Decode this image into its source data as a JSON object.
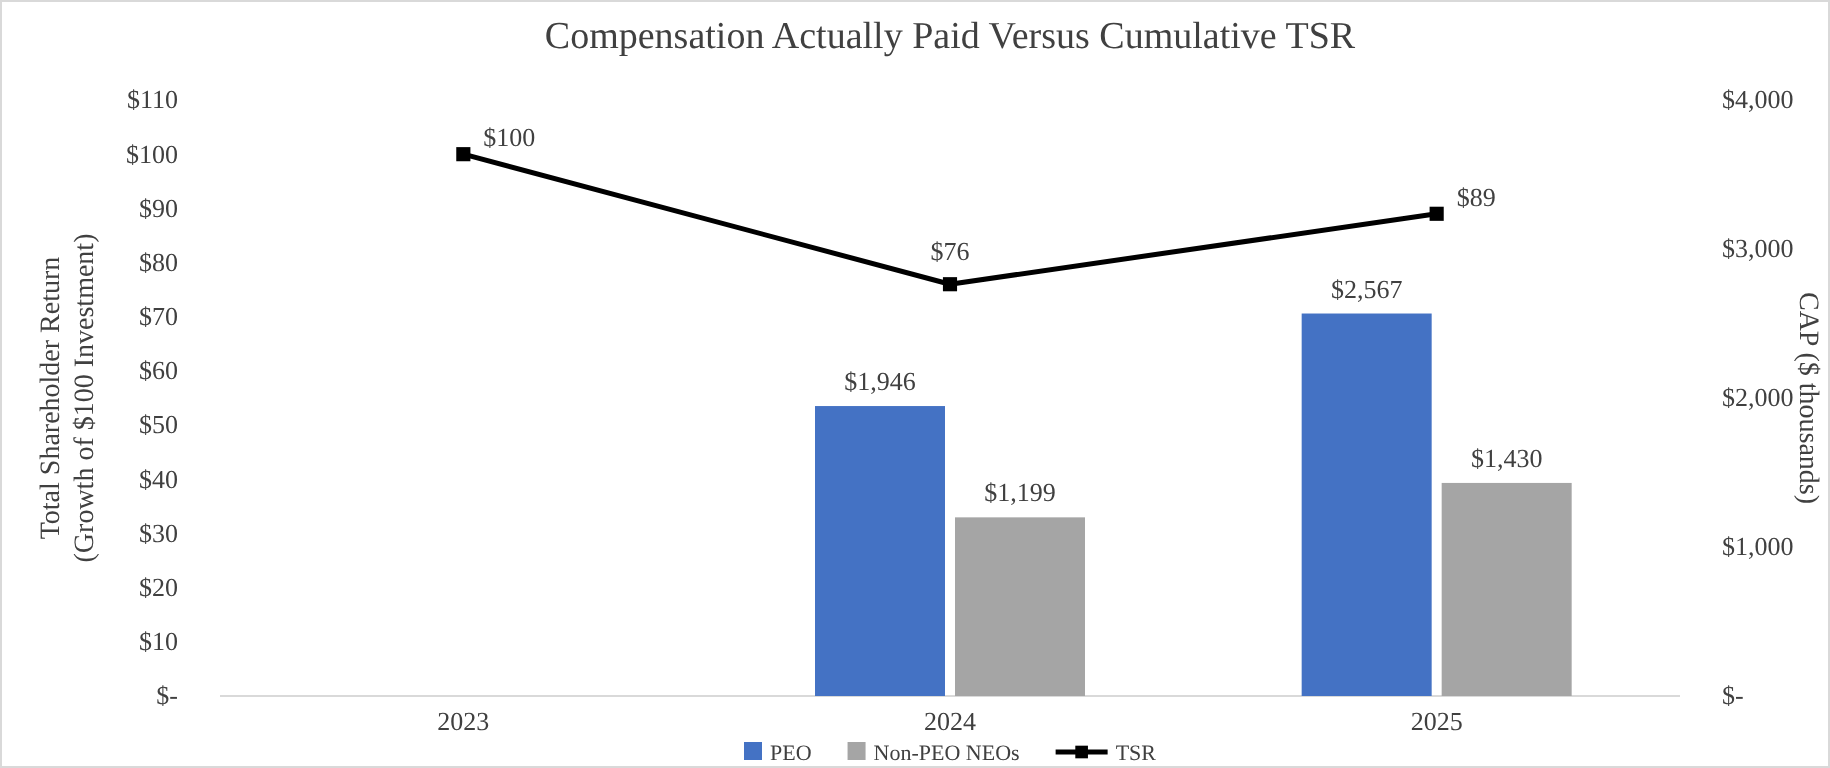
{
  "chart_data": {
    "type": "bar",
    "title": "Compensation Actually Paid Versus Cumulative TSR",
    "ylabel": "Total Shareholder Return\n(Growth of $100 Investment)",
    "y2label": "CAP ($ thousands)",
    "categories": [
      "2023",
      "2024",
      "2025"
    ],
    "series": [
      {
        "name": "PEO",
        "axis": "y2",
        "color": "#4472c4",
        "values": [
          null,
          1946,
          2567
        ],
        "value_labels": [
          null,
          "$1,946",
          "$2,567"
        ]
      },
      {
        "name": "Non-PEO NEOs",
        "axis": "y2",
        "color": "#a5a5a5",
        "values": [
          null,
          1199,
          1430
        ],
        "value_labels": [
          null,
          "$1,199",
          "$1,430"
        ]
      },
      {
        "name": "TSR",
        "type": "line",
        "color": "#000000",
        "values": [
          100,
          76,
          89
        ],
        "value_labels": [
          "$100",
          "$76",
          "$89"
        ]
      }
    ],
    "ylim": [
      0,
      110
    ],
    "yticks": [
      {
        "value": 0,
        "label": "$-"
      },
      {
        "value": 10,
        "label": "$10"
      },
      {
        "value": 20,
        "label": "$20"
      },
      {
        "value": 30,
        "label": "$30"
      },
      {
        "value": 40,
        "label": "$40"
      },
      {
        "value": 50,
        "label": "$50"
      },
      {
        "value": 60,
        "label": "$60"
      },
      {
        "value": 70,
        "label": "$70"
      },
      {
        "value": 80,
        "label": "$80"
      },
      {
        "value": 90,
        "label": "$90"
      },
      {
        "value": 100,
        "label": "$100"
      },
      {
        "value": 110,
        "label": "$110"
      }
    ],
    "y2lim": [
      0,
      4000
    ],
    "y2ticks": [
      {
        "value": 0,
        "label": "$-"
      },
      {
        "value": 1000,
        "label": "$1,000"
      },
      {
        "value": 2000,
        "label": "$2,000"
      },
      {
        "value": 3000,
        "label": "$3,000"
      },
      {
        "value": 4000,
        "label": "$4,000"
      }
    ],
    "marker": "square",
    "line_style": "solid",
    "legend": "bottom"
  }
}
